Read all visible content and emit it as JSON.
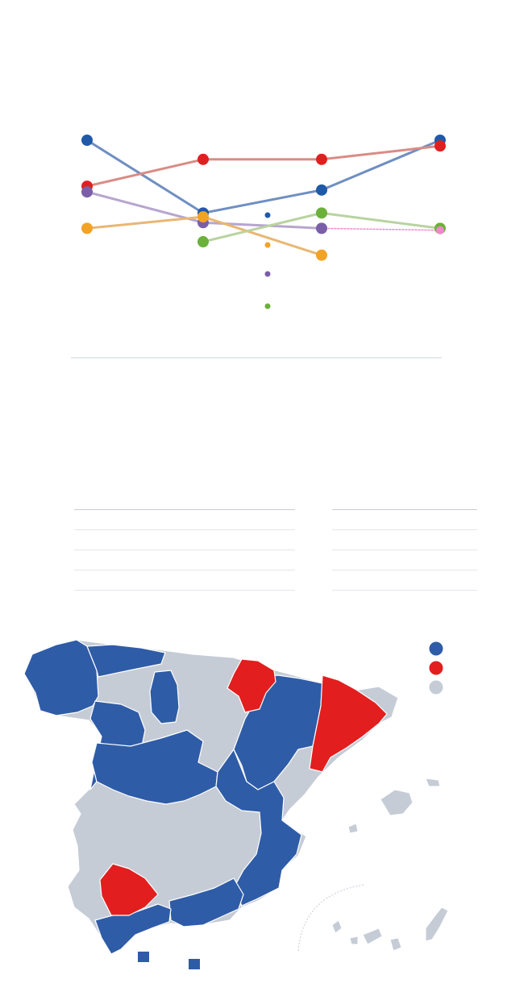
{
  "chart_data": {
    "type": "line",
    "title": "",
    "xlabel": "",
    "ylabel": "",
    "x_positions": 4,
    "y_inverted": true,
    "ylim": [
      1,
      10
    ],
    "grid": false,
    "series": [
      {
        "color": "#1f5aa8",
        "line_color": "#6f8fc2",
        "values": [
          1,
          4.8,
          3.6,
          1
        ]
      },
      {
        "color": "#e02020",
        "line_color": "#d98c85",
        "values": [
          3.4,
          2.0,
          2.0,
          1.3
        ]
      },
      {
        "color": "#7a5fa8",
        "line_color": "#b7a5cf",
        "values": [
          3.7,
          5.3,
          5.6,
          null
        ]
      },
      {
        "color": "#f2a325",
        "line_color": "#e8b774",
        "values": [
          5.6,
          5.0,
          7.0,
          null
        ]
      },
      {
        "color": "#6bb13a",
        "line_color": "#b9d3a0",
        "values": [
          null,
          6.3,
          4.8,
          5.6
        ]
      },
      {
        "color": "#ee88cc",
        "line_color": "#ee88cc",
        "values": [
          null,
          null,
          5.6,
          5.7
        ],
        "dotted": true
      }
    ],
    "legend": {
      "placement": "center",
      "items": [
        {
          "color": "#1f5aa8"
        },
        {
          "color": "#f2a325"
        },
        {
          "color": "#7a5fa8"
        },
        {
          "color": "#6bb13a"
        }
      ]
    }
  },
  "table": {
    "left_rows": 5,
    "right_rows": 5
  },
  "map": {
    "colors": {
      "blue": "#2f5ca7",
      "red": "#e21e1e",
      "grey": "#c5ccd6"
    },
    "legend": [
      {
        "color": "#2f5ca7"
      },
      {
        "color": "#e21e1e"
      },
      {
        "color": "#c5ccd6"
      }
    ],
    "bottom_keys": [
      {
        "color": "#2f5ca7"
      },
      {
        "color": "#2f5ca7"
      }
    ]
  }
}
